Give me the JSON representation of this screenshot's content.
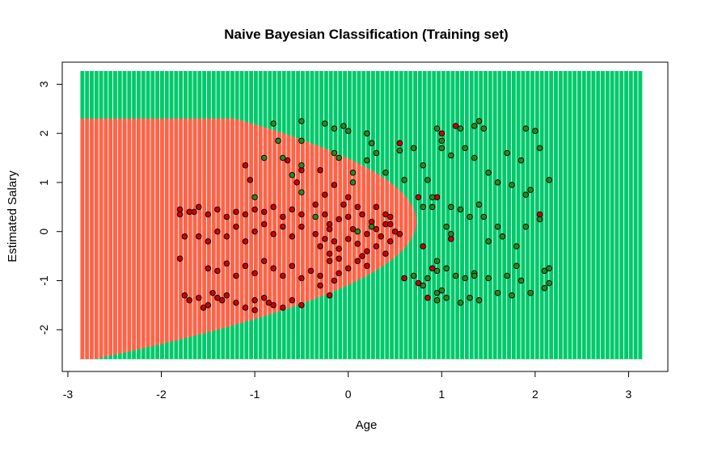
{
  "chart_data": {
    "type": "scatter",
    "title": "Naive Bayesian Classification (Training set)",
    "xlabel": "Age",
    "ylabel": "Estimated Salary",
    "xlim": [
      -3.06,
      3.42
    ],
    "ylim": [
      -2.85,
      3.45
    ],
    "x_ticks": [
      -3,
      -2,
      -1,
      0,
      1,
      2,
      3
    ],
    "y_ticks": [
      -2,
      -1,
      0,
      1,
      2,
      3
    ],
    "grid": false,
    "legend": "none",
    "colors": {
      "region_class0": "#FF6347",
      "region_class1": "#00C96B",
      "point_class0": "#CC0000",
      "point_class1": "#228B22",
      "point_edge": "#000000",
      "stripe": "#ffffff"
    },
    "region_grid": {
      "x_range": [
        -2.87,
        3.15
      ],
      "y_range": [
        -2.6,
        3.27
      ],
      "boundary": "class0 region is left/inside a parabola-like curve opening to the left; vertex near (0.73, 0.2), passing through (-2.87, 2.3) and (-0.35, -2.6)"
    },
    "series": [
      {
        "name": "0",
        "points": [
          [
            -1.8,
            0.45
          ],
          [
            -1.8,
            0.35
          ],
          [
            -1.7,
            0.4
          ],
          [
            -1.75,
            -0.1
          ],
          [
            -1.8,
            -0.55
          ],
          [
            -1.65,
            0.4
          ],
          [
            -1.6,
            0.5
          ],
          [
            -1.5,
            0.35
          ],
          [
            -1.4,
            0.45
          ],
          [
            -1.3,
            0.3
          ],
          [
            -1.2,
            0.4
          ],
          [
            -1.1,
            0.35
          ],
          [
            -1.0,
            0.45
          ],
          [
            -0.9,
            0.4
          ],
          [
            -0.8,
            0.5
          ],
          [
            -0.7,
            0.3
          ],
          [
            -0.6,
            0.45
          ],
          [
            -0.5,
            0.35
          ],
          [
            -1.6,
            -0.1
          ],
          [
            -1.5,
            -0.2
          ],
          [
            -1.4,
            0.0
          ],
          [
            -1.3,
            -0.1
          ],
          [
            -1.2,
            0.1
          ],
          [
            -1.1,
            -0.2
          ],
          [
            -1.0,
            0.0
          ],
          [
            -0.9,
            0.15
          ],
          [
            -0.8,
            -0.05
          ],
          [
            -0.7,
            0.1
          ],
          [
            -0.6,
            -0.1
          ],
          [
            -0.5,
            0.1
          ],
          [
            -1.75,
            -1.3
          ],
          [
            -1.7,
            -1.4
          ],
          [
            -1.6,
            -1.35
          ],
          [
            -1.55,
            -1.55
          ],
          [
            -1.5,
            -1.5
          ],
          [
            -1.4,
            -1.35
          ],
          [
            -1.3,
            -1.3
          ],
          [
            -1.2,
            -1.45
          ],
          [
            -1.1,
            -1.55
          ],
          [
            -1.0,
            -1.4
          ],
          [
            -0.9,
            -1.35
          ],
          [
            -0.8,
            -1.5
          ],
          [
            -0.7,
            -1.55
          ],
          [
            -0.6,
            -1.4
          ],
          [
            -0.5,
            -1.5
          ],
          [
            -1.45,
            -1.25
          ],
          [
            -1.35,
            -1.4
          ],
          [
            -0.85,
            -1.45
          ],
          [
            -1.5,
            -0.75
          ],
          [
            -1.4,
            -0.8
          ],
          [
            -1.3,
            -0.65
          ],
          [
            -1.2,
            -0.9
          ],
          [
            -1.1,
            -0.7
          ],
          [
            -1.0,
            -0.85
          ],
          [
            -0.9,
            -0.6
          ],
          [
            -0.8,
            -0.75
          ],
          [
            -0.7,
            -0.9
          ],
          [
            -0.6,
            -0.7
          ],
          [
            -0.5,
            -0.95
          ],
          [
            -0.4,
            -0.8
          ],
          [
            -0.3,
            -1.1
          ],
          [
            -0.2,
            -1.3
          ],
          [
            -0.15,
            -1.0
          ],
          [
            -0.1,
            -0.85
          ],
          [
            0.0,
            -0.75
          ],
          [
            0.1,
            -0.6
          ],
          [
            -0.3,
            -0.3
          ],
          [
            -0.2,
            -0.45
          ],
          [
            -0.15,
            -0.2
          ],
          [
            -0.1,
            -0.35
          ],
          [
            0.0,
            -0.15
          ],
          [
            0.1,
            -0.25
          ],
          [
            0.2,
            -0.4
          ],
          [
            0.3,
            -0.3
          ],
          [
            0.35,
            -0.1
          ],
          [
            0.45,
            -0.2
          ],
          [
            0.5,
            0.0
          ],
          [
            0.4,
            0.15
          ],
          [
            -0.25,
            0.35
          ],
          [
            -0.2,
            0.15
          ],
          [
            -0.1,
            0.25
          ],
          [
            0.0,
            0.3
          ],
          [
            0.05,
            0.05
          ],
          [
            0.15,
            0.35
          ],
          [
            0.25,
            0.2
          ],
          [
            0.3,
            0.05
          ],
          [
            0.45,
            0.15
          ],
          [
            0.2,
            -0.05
          ],
          [
            -0.35,
            -0.05
          ],
          [
            -0.25,
            -0.15
          ],
          [
            -0.35,
            0.55
          ],
          [
            -0.25,
            0.75
          ],
          [
            -0.15,
            0.95
          ],
          [
            -0.05,
            0.55
          ],
          [
            0.0,
            0.7
          ],
          [
            0.1,
            0.5
          ],
          [
            -0.5,
            1.25
          ],
          [
            -0.65,
            1.45
          ],
          [
            -0.55,
            1.0
          ],
          [
            -0.3,
            1.25
          ],
          [
            -1.1,
            1.35
          ],
          [
            -1.05,
            1.05
          ],
          [
            0.3,
            0.5
          ],
          [
            0.4,
            0.35
          ],
          [
            0.15,
            -0.5
          ],
          [
            -0.1,
            -0.55
          ],
          [
            0.2,
            -0.7
          ],
          [
            -0.2,
            -0.6
          ],
          [
            0.6,
            -0.95
          ],
          [
            0.75,
            -1.05
          ],
          [
            0.85,
            -1.35
          ],
          [
            0.8,
            -0.3
          ],
          [
            0.75,
            0.7
          ],
          [
            0.9,
            -0.75
          ],
          [
            0.55,
            -0.05
          ],
          [
            0.45,
            0.3
          ],
          [
            0.95,
            0.7
          ],
          [
            1.0,
            2.0
          ],
          [
            0.55,
            1.8
          ],
          [
            1.1,
            -0.15
          ],
          [
            2.05,
            0.35
          ],
          [
            1.15,
            2.15
          ],
          [
            -1.0,
            -1.6
          ],
          [
            -0.3,
            -0.9
          ],
          [
            0.4,
            -0.45
          ],
          [
            -0.2,
            0.05
          ]
        ]
      },
      {
        "name": "1",
        "points": [
          [
            -0.8,
            2.2
          ],
          [
            -0.75,
            1.85
          ],
          [
            -0.5,
            2.25
          ],
          [
            -0.5,
            1.85
          ],
          [
            -0.9,
            1.5
          ],
          [
            -0.7,
            1.5
          ],
          [
            -0.5,
            1.35
          ],
          [
            -0.6,
            1.15
          ],
          [
            -1.0,
            0.7
          ],
          [
            -0.5,
            0.8
          ],
          [
            -0.25,
            2.2
          ],
          [
            -0.15,
            2.1
          ],
          [
            -0.05,
            2.15
          ],
          [
            0.0,
            2.05
          ],
          [
            0.2,
            2.0
          ],
          [
            0.25,
            1.8
          ],
          [
            -0.15,
            1.6
          ],
          [
            -0.1,
            1.5
          ],
          [
            0.05,
            1.2
          ],
          [
            0.2,
            1.45
          ],
          [
            0.4,
            1.2
          ],
          [
            0.55,
            1.65
          ],
          [
            0.7,
            1.7
          ],
          [
            0.6,
            1.05
          ],
          [
            0.8,
            1.35
          ],
          [
            0.85,
            1.05
          ],
          [
            0.9,
            0.7
          ],
          [
            0.95,
            2.1
          ],
          [
            1.0,
            1.85
          ],
          [
            1.0,
            1.7
          ],
          [
            1.1,
            1.55
          ],
          [
            1.2,
            2.1
          ],
          [
            1.35,
            2.15
          ],
          [
            1.4,
            2.25
          ],
          [
            1.45,
            2.1
          ],
          [
            1.25,
            1.7
          ],
          [
            1.35,
            1.5
          ],
          [
            1.5,
            1.2
          ],
          [
            1.6,
            1.0
          ],
          [
            1.7,
            1.6
          ],
          [
            1.75,
            0.95
          ],
          [
            1.85,
            1.45
          ],
          [
            1.9,
            2.1
          ],
          [
            2.0,
            2.05
          ],
          [
            2.05,
            1.7
          ],
          [
            1.9,
            0.75
          ],
          [
            1.95,
            0.85
          ],
          [
            2.15,
            1.05
          ],
          [
            1.1,
            0.5
          ],
          [
            1.2,
            0.45
          ],
          [
            1.4,
            0.55
          ],
          [
            1.45,
            0.3
          ],
          [
            1.6,
            0.1
          ],
          [
            1.65,
            -0.1
          ],
          [
            1.8,
            -0.3
          ],
          [
            1.9,
            0.1
          ],
          [
            2.05,
            0.25
          ],
          [
            0.95,
            -0.6
          ],
          [
            1.05,
            -0.75
          ],
          [
            1.15,
            -0.9
          ],
          [
            1.25,
            -0.95
          ],
          [
            1.35,
            -0.85
          ],
          [
            1.5,
            -0.95
          ],
          [
            1.6,
            -1.25
          ],
          [
            1.7,
            -0.9
          ],
          [
            1.85,
            -1.0
          ],
          [
            1.95,
            -1.25
          ],
          [
            2.1,
            -1.15
          ],
          [
            2.1,
            -0.8
          ],
          [
            2.15,
            -0.75
          ],
          [
            2.15,
            -1.05
          ],
          [
            1.8,
            -0.7
          ],
          [
            0.95,
            -1.4
          ],
          [
            1.05,
            -1.35
          ],
          [
            1.2,
            -1.45
          ],
          [
            1.3,
            -1.35
          ],
          [
            1.4,
            -1.4
          ],
          [
            1.0,
            -1.2
          ],
          [
            0.8,
            -1.1
          ],
          [
            0.85,
            -0.95
          ],
          [
            0.7,
            -0.9
          ],
          [
            0.95,
            -0.8
          ],
          [
            0.9,
            0.5
          ],
          [
            1.05,
            0.1
          ],
          [
            1.1,
            -0.05
          ],
          [
            0.95,
            -1.25
          ],
          [
            1.3,
            0.3
          ],
          [
            1.35,
            -0.9
          ],
          [
            0.3,
            1.6
          ],
          [
            0.05,
            1.0
          ],
          [
            -0.35,
            0.3
          ],
          [
            0.1,
            0.0
          ],
          [
            0.25,
            0.1
          ],
          [
            0.8,
            0.5
          ],
          [
            1.5,
            -0.2
          ],
          [
            1.75,
            -1.3
          ]
        ]
      }
    ]
  }
}
